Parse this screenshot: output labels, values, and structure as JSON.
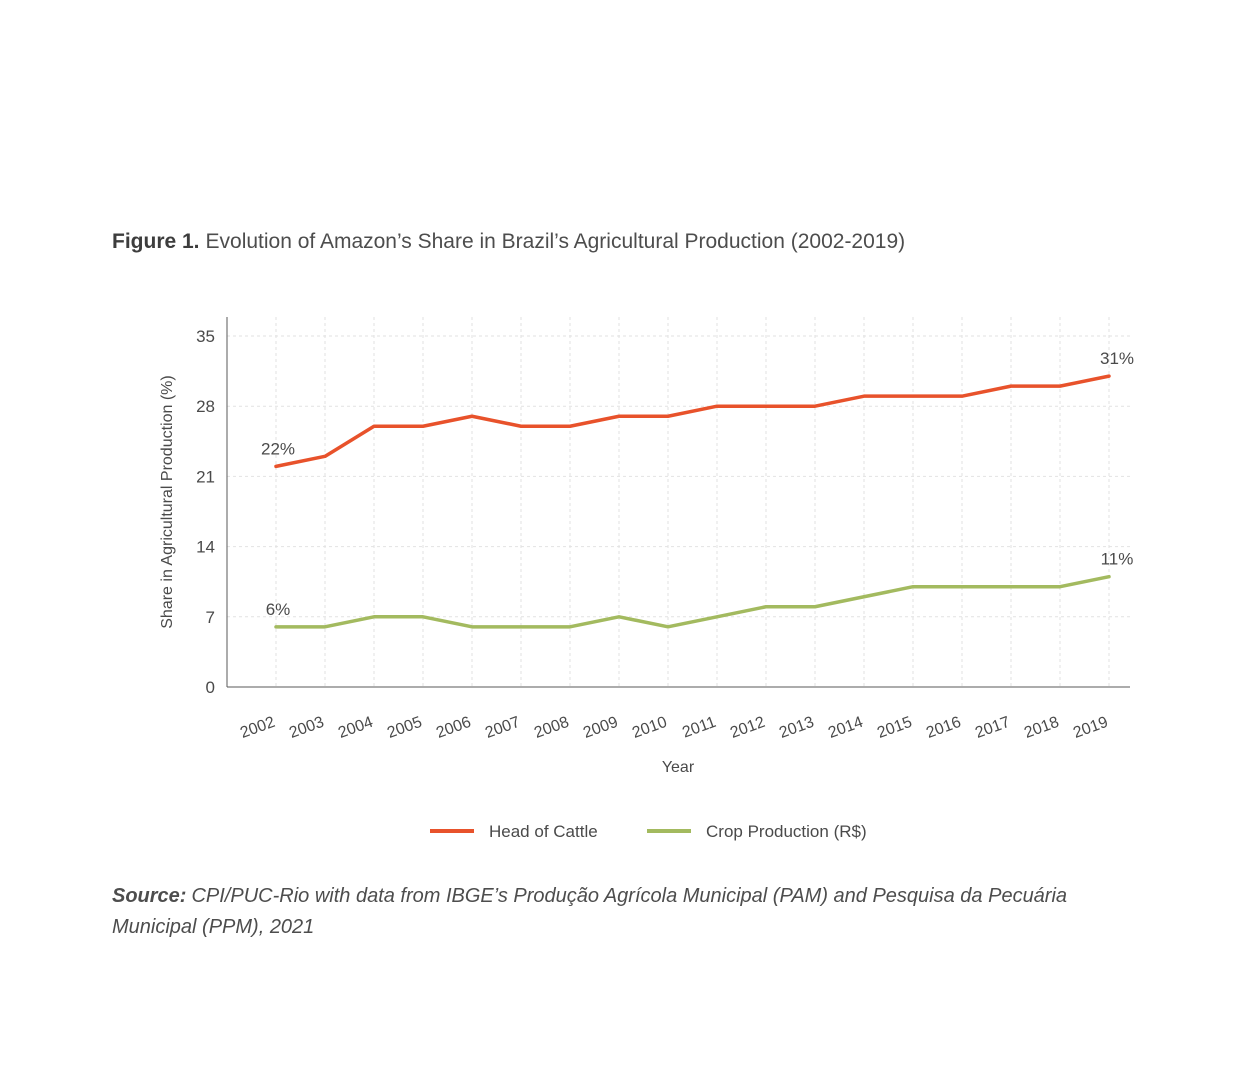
{
  "figure": {
    "label": "Figure 1.",
    "title": "Evolution of Amazon’s Share in Brazil’s Agricultural Production (2002-2019)"
  },
  "source": {
    "label": "Source:",
    "text": "CPI/PUC-Rio with data from IBGE’s Produção Agrícola Municipal (PAM) and Pesquisa da Pecuária Municipal (PPM), 2021"
  },
  "chart_data": {
    "type": "line",
    "title": "Evolution of Amazon’s Share in Brazil’s Agricultural Production (2002-2019)",
    "xlabel": "Year",
    "ylabel": "Share in Agricultural Production (%)",
    "ylim": [
      0,
      35
    ],
    "yticks": [
      0,
      7,
      14,
      21,
      28,
      35
    ],
    "grid": true,
    "legend_position": "bottom",
    "categories": [
      "2002",
      "2003",
      "2004",
      "2005",
      "2006",
      "2007",
      "2008",
      "2009",
      "2010",
      "2011",
      "2012",
      "2013",
      "2014",
      "2015",
      "2016",
      "2017",
      "2018",
      "2019"
    ],
    "series": [
      {
        "name": "Head of Cattle",
        "color": "#e8522b",
        "values": [
          22,
          23,
          26,
          26,
          27,
          26,
          26,
          27,
          27,
          28,
          28,
          28,
          29,
          29,
          29,
          30,
          30,
          31
        ],
        "labels": [
          {
            "index": 0,
            "text": "22%"
          },
          {
            "index": 17,
            "text": "31%"
          }
        ]
      },
      {
        "name": "Crop Production (R$)",
        "color": "#a3ba5f",
        "values": [
          6,
          6,
          7,
          7,
          6,
          6,
          6,
          7,
          6,
          7,
          8,
          8,
          9,
          10,
          10,
          10,
          10,
          11
        ],
        "labels": [
          {
            "index": 0,
            "text": "6%"
          },
          {
            "index": 17,
            "text": "11%"
          }
        ]
      }
    ]
  }
}
